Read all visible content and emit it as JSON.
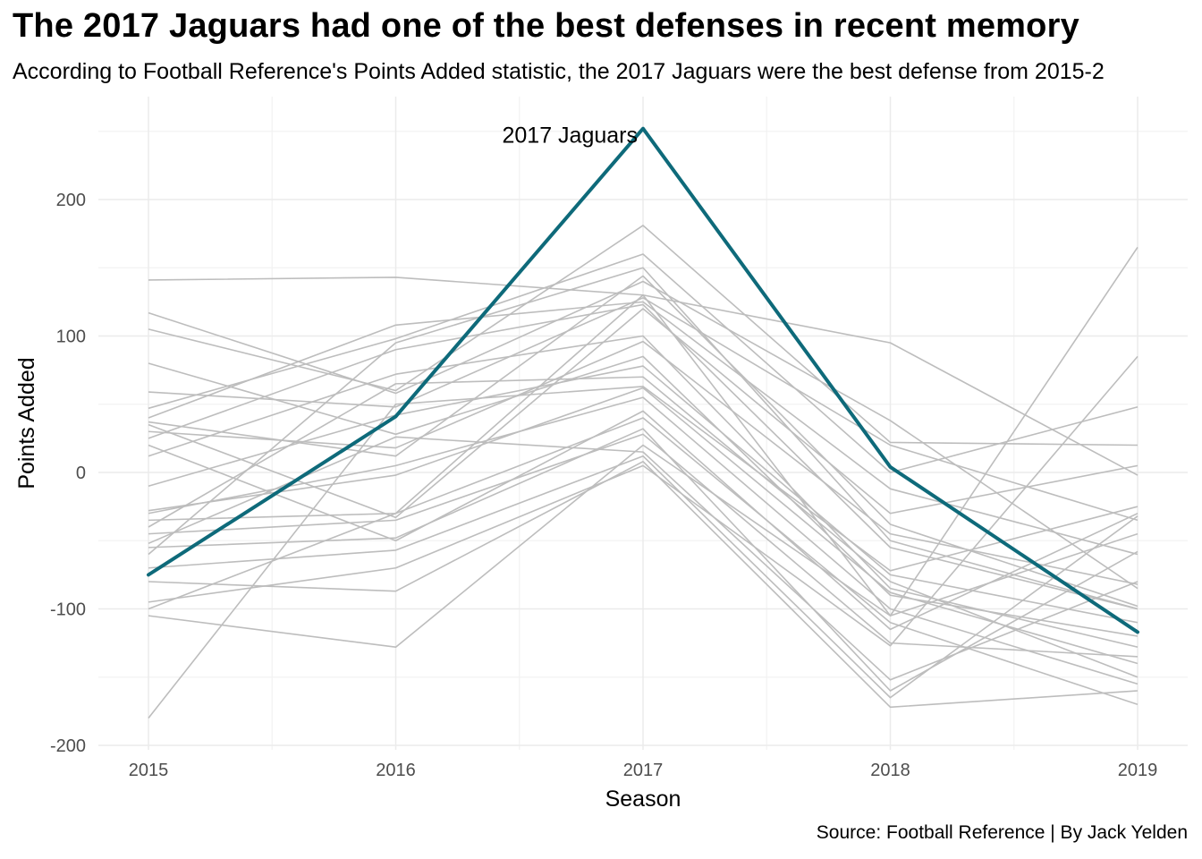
{
  "chart_data": {
    "type": "line",
    "title": "The 2017 Jaguars had one of the best defenses in recent memory",
    "subtitle": "According to Football Reference's Points Added statistic, the 2017 Jaguars were the best defense from 2015-2",
    "caption": "Source: Football Reference | By Jack Yelden",
    "xlabel": "Season",
    "ylabel": "Points Added",
    "x": [
      2015,
      2016,
      2017,
      2018,
      2019
    ],
    "ylim": [
      -200,
      265
    ],
    "yticks": [
      -200,
      -100,
      0,
      100,
      200
    ],
    "grid": true,
    "highlight": {
      "label": "2017 Jaguars",
      "color": "#0e6a7a",
      "values": [
        -75,
        41,
        252,
        4,
        -117
      ]
    },
    "background_series_color": "#bdbdbd",
    "series": [
      {
        "values": [
          141,
          143,
          130,
          95,
          -2
        ]
      },
      {
        "values": [
          117,
          58,
          140,
          38,
          -85
        ]
      },
      {
        "values": [
          105,
          60,
          181,
          22,
          20
        ]
      },
      {
        "values": [
          59,
          48,
          128,
          20,
          -35
        ]
      },
      {
        "values": [
          47,
          98,
          160,
          0,
          48
        ]
      },
      {
        "values": [
          40,
          108,
          125,
          -12,
          -60
        ]
      },
      {
        "values": [
          37,
          12,
          144,
          -38,
          -98
        ]
      },
      {
        "values": [
          30,
          18,
          96,
          -45,
          -82
        ]
      },
      {
        "values": [
          25,
          90,
          123,
          -55,
          -100
        ]
      },
      {
        "values": [
          12,
          72,
          100,
          -85,
          -128
        ]
      },
      {
        "values": [
          -10,
          42,
          78,
          -75,
          -110
        ]
      },
      {
        "values": [
          -28,
          -2,
          62,
          -88,
          -140
        ]
      },
      {
        "values": [
          -30,
          5,
          55,
          -100,
          -155
        ]
      },
      {
        "values": [
          -35,
          -30,
          40,
          -110,
          -170
        ]
      },
      {
        "values": [
          -45,
          -35,
          28,
          -125,
          -135
        ]
      },
      {
        "values": [
          -52,
          26,
          15,
          -152,
          -80
        ]
      },
      {
        "values": [
          -55,
          -48,
          32,
          -160,
          -58
        ]
      },
      {
        "values": [
          -70,
          -57,
          12,
          -165,
          -32
        ]
      },
      {
        "values": [
          -80,
          -87,
          8,
          -172,
          -160
        ]
      },
      {
        "values": [
          -95,
          -70,
          5,
          -127,
          85
        ]
      },
      {
        "values": [
          -105,
          -128,
          20,
          -105,
          165
        ]
      },
      {
        "values": [
          -180,
          50,
          63,
          -72,
          -25
        ]
      },
      {
        "values": [
          -60,
          95,
          150,
          -50,
          -100
        ]
      },
      {
        "values": [
          35,
          -33,
          120,
          -30,
          5
        ]
      },
      {
        "values": [
          80,
          28,
          85,
          -90,
          -120
        ]
      },
      {
        "values": [
          -100,
          -30,
          130,
          -105,
          -45
        ]
      },
      {
        "values": [
          20,
          -50,
          45,
          -115,
          -30
        ]
      },
      {
        "values": [
          -40,
          65,
          70,
          -80,
          -150
        ]
      }
    ]
  }
}
